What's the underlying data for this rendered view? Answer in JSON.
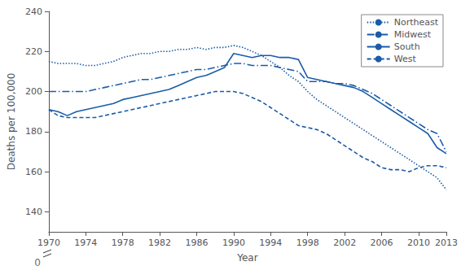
{
  "chart_data": {
    "type": "line",
    "x": [
      1970,
      1971,
      1972,
      1973,
      1974,
      1975,
      1976,
      1977,
      1978,
      1979,
      1980,
      1981,
      1982,
      1983,
      1984,
      1985,
      1986,
      1987,
      1988,
      1989,
      1990,
      1991,
      1992,
      1993,
      1994,
      1995,
      1996,
      1997,
      1998,
      1999,
      2000,
      2001,
      2002,
      2003,
      2004,
      2005,
      2006,
      2007,
      2008,
      2009,
      2010,
      2011,
      2012,
      2013
    ],
    "series": [
      {
        "name": "Northeast",
        "color": "#1a5ca8",
        "line_style": "dotted",
        "values": [
          215,
          214,
          214,
          214,
          213,
          213,
          214,
          215,
          217,
          218,
          219,
          219,
          220,
          220,
          221,
          221,
          222,
          221,
          222,
          222,
          223,
          222,
          220,
          218,
          215,
          212,
          208,
          205,
          200,
          196,
          193,
          190,
          187,
          184,
          181,
          178,
          175,
          172,
          169,
          166,
          163,
          160,
          157,
          151
        ]
      },
      {
        "name": "Midwest",
        "color": "#1a5ca8",
        "line_style": "dashdot",
        "values": [
          200,
          200,
          200,
          200,
          200,
          201,
          202,
          203,
          204,
          205,
          206,
          206,
          207,
          208,
          209,
          210,
          211,
          211,
          212,
          213,
          214,
          214,
          213,
          213,
          213,
          212,
          211,
          210,
          205,
          205,
          205,
          204,
          204,
          203,
          201,
          199,
          196,
          193,
          190,
          187,
          184,
          181,
          179,
          170
        ]
      },
      {
        "name": "South",
        "color": "#1a5ca8",
        "line_style": "solid",
        "values": [
          191,
          190,
          188,
          190,
          191,
          192,
          193,
          194,
          196,
          197,
          198,
          199,
          200,
          201,
          203,
          205,
          207,
          208,
          210,
          212,
          219,
          218,
          217,
          218,
          218,
          217,
          217,
          216,
          207,
          206,
          205,
          204,
          203,
          202,
          200,
          197,
          194,
          191,
          188,
          185,
          182,
          179,
          172,
          169
        ]
      },
      {
        "name": "West",
        "color": "#1a5ca8",
        "line_style": "dashed",
        "values": [
          191,
          188,
          187,
          187,
          187,
          187,
          188,
          189,
          190,
          191,
          192,
          193,
          194,
          195,
          196,
          197,
          198,
          199,
          200,
          200,
          200,
          199,
          197,
          195,
          192,
          189,
          186,
          183,
          182,
          181,
          179,
          176,
          173,
          170,
          167,
          165,
          162,
          161,
          161,
          160,
          162,
          163,
          163,
          162
        ]
      }
    ],
    "xlabel": "Year",
    "ylabel": "Deaths per 100,000",
    "xlim": [
      1970,
      2013
    ],
    "xticks": [
      1970,
      1974,
      1978,
      1982,
      1986,
      1990,
      1994,
      1998,
      2002,
      2006,
      2010,
      2013
    ],
    "ylim": [
      130,
      240
    ],
    "yticks": [
      140,
      160,
      180,
      200,
      220,
      240
    ],
    "annotations": [
      {
        "text": "0"
      }
    ],
    "legend": "upper right",
    "grid": false
  }
}
